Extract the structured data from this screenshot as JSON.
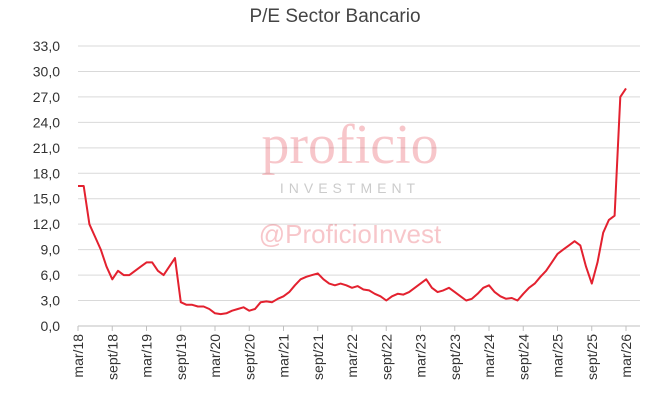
{
  "chart_data": {
    "type": "line",
    "title": "P/E Sector Bancario",
    "watermark": [
      "proficio",
      "INVESTMENT",
      "@ProficioInvest"
    ],
    "x": [
      "2018-03",
      "2018-04",
      "2018-05",
      "2018-06",
      "2018-07",
      "2018-08",
      "2018-09",
      "2018-10",
      "2018-11",
      "2018-12",
      "2019-01",
      "2019-02",
      "2019-03",
      "2019-04",
      "2019-05",
      "2019-06",
      "2019-07",
      "2019-08",
      "2019-09",
      "2019-10",
      "2019-11",
      "2019-12",
      "2020-01",
      "2020-02",
      "2020-03",
      "2020-04",
      "2020-05",
      "2020-06",
      "2020-07",
      "2020-08",
      "2020-09",
      "2020-10",
      "2020-11",
      "2020-12",
      "2021-01",
      "2021-02",
      "2021-03",
      "2021-04",
      "2021-05",
      "2021-06",
      "2021-07",
      "2021-08",
      "2021-09",
      "2021-10",
      "2021-11",
      "2021-12",
      "2022-01",
      "2022-02",
      "2022-03",
      "2022-04",
      "2022-05",
      "2022-06",
      "2022-07",
      "2022-08",
      "2022-09",
      "2022-10",
      "2022-11",
      "2022-12",
      "2023-01",
      "2023-02",
      "2023-03",
      "2023-04",
      "2023-05",
      "2023-06",
      "2023-07",
      "2023-08",
      "2023-09",
      "2023-10",
      "2023-11",
      "2023-12",
      "2024-01",
      "2024-02",
      "2024-03",
      "2024-04",
      "2024-05",
      "2024-06",
      "2024-07",
      "2024-08",
      "2024-09",
      "2024-10",
      "2024-11",
      "2024-12",
      "2025-01",
      "2025-02",
      "2025-03",
      "2025-04",
      "2025-05",
      "2025-06",
      "2025-07",
      "2025-08",
      "2025-09",
      "2025-10",
      "2025-11",
      "2025-12",
      "2026-01",
      "2026-02",
      "2026-03"
    ],
    "series": [
      {
        "name": "P/E",
        "color": "#e3212f",
        "values": [
          16.5,
          16.5,
          12,
          10.5,
          9,
          7,
          5.5,
          6.5,
          6,
          6,
          6.5,
          7,
          7.5,
          7.5,
          6.5,
          6,
          7,
          8,
          2.8,
          2.5,
          2.5,
          2.3,
          2.3,
          2.0,
          1.5,
          1.4,
          1.5,
          1.8,
          2,
          2.2,
          1.8,
          2.0,
          2.8,
          2.9,
          2.8,
          3.2,
          3.5,
          4.0,
          4.8,
          5.5,
          5.8,
          6.0,
          6.2,
          5.5,
          5.0,
          4.8,
          5.0,
          4.8,
          4.5,
          4.7,
          4.3,
          4.2,
          3.8,
          3.5,
          3.0,
          3.5,
          3.8,
          3.7,
          4.0,
          4.5,
          5.0,
          5.5,
          4.5,
          4.0,
          4.2,
          4.5,
          4.0,
          3.5,
          3.0,
          3.2,
          3.8,
          4.5,
          4.8,
          4.0,
          3.5,
          3.2,
          3.3,
          3.0,
          3.8,
          4.5,
          5.0,
          5.8,
          6.5,
          7.5,
          8.5,
          9.0,
          9.5,
          10.0,
          9.5,
          7.0,
          5.0,
          7.5,
          11,
          12.5,
          13.0,
          27,
          28
        ]
      }
    ],
    "xlim": [
      "2018-03",
      "2026-03"
    ],
    "xticks": [
      {
        "value": "2018-03",
        "label": "mar/18"
      },
      {
        "value": "2018-09",
        "label": "sept/18"
      },
      {
        "value": "2019-03",
        "label": "mar/19"
      },
      {
        "value": "2019-09",
        "label": "sept/19"
      },
      {
        "value": "2020-03",
        "label": "mar/20"
      },
      {
        "value": "2020-09",
        "label": "sept/20"
      },
      {
        "value": "2021-03",
        "label": "mar/21"
      },
      {
        "value": "2021-09",
        "label": "sept/21"
      },
      {
        "value": "2022-03",
        "label": "mar/22"
      },
      {
        "value": "2022-09",
        "label": "sept/22"
      },
      {
        "value": "2023-03",
        "label": "mar/23"
      },
      {
        "value": "2023-09",
        "label": "sept/23"
      },
      {
        "value": "2024-03",
        "label": "mar/24"
      },
      {
        "value": "2024-09",
        "label": "sept/24"
      },
      {
        "value": "2025-03",
        "label": "mar/25"
      },
      {
        "value": "2025-09",
        "label": "sept/25"
      },
      {
        "value": "2026-03",
        "label": "mar/26"
      }
    ],
    "ylim": [
      0,
      33
    ],
    "yticks": [
      {
        "value": 0,
        "label": "0,0"
      },
      {
        "value": 3,
        "label": "3,0"
      },
      {
        "value": 6,
        "label": "6,0"
      },
      {
        "value": 9,
        "label": "9,0"
      },
      {
        "value": 12,
        "label": "12,0"
      },
      {
        "value": 15,
        "label": "15,0"
      },
      {
        "value": 18,
        "label": "18,0"
      },
      {
        "value": 21,
        "label": "21,0"
      },
      {
        "value": 24,
        "label": "24,0"
      },
      {
        "value": 27,
        "label": "27,0"
      },
      {
        "value": 30,
        "label": "30,0"
      },
      {
        "value": 33,
        "label": "33,0"
      }
    ],
    "grid": true
  }
}
